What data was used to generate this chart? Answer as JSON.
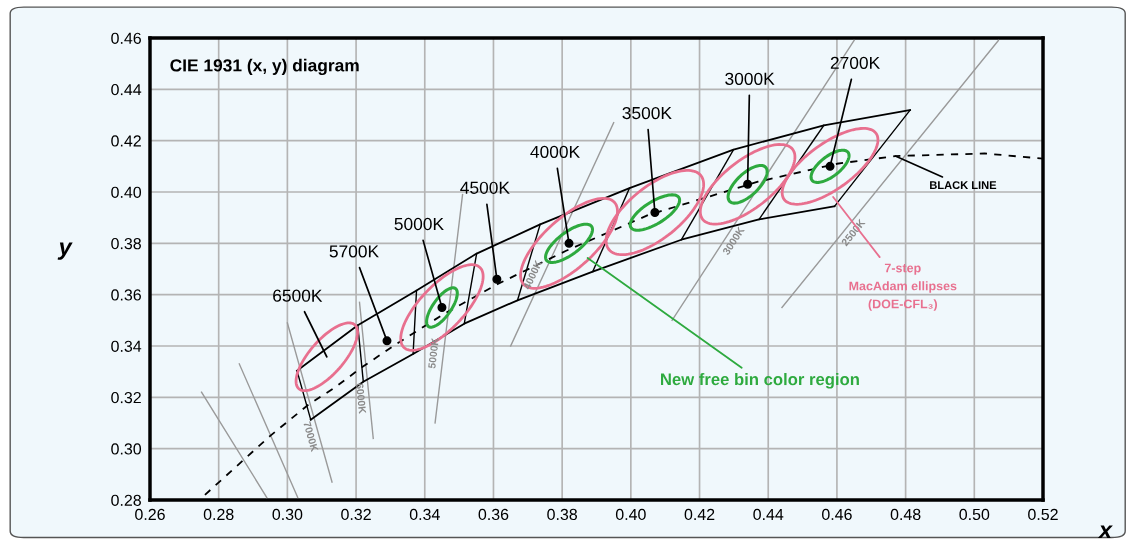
{
  "chart_data": {
    "type": "line",
    "title": "CIE 1931 (x, y) diagram",
    "xlabel": "x",
    "ylabel": "y",
    "xlim": [
      0.26,
      0.52
    ],
    "ylim": [
      0.28,
      0.46
    ],
    "xticks": [
      0.26,
      0.28,
      {
        "value": 0.3,
        "label": "0.30"
      },
      0.32,
      0.34,
      0.36,
      0.38,
      {
        "value": 0.4,
        "label": "0.40"
      },
      0.42,
      0.44,
      0.46,
      0.48,
      {
        "value": 0.5,
        "label": "0.50"
      },
      0.52
    ],
    "yticks": [
      0.28,
      {
        "value": 0.3,
        "label": "0.30"
      },
      0.32,
      0.34,
      0.36,
      0.38,
      {
        "value": 0.4,
        "label": "0.40"
      },
      0.42,
      0.44,
      0.46
    ],
    "grid": true,
    "series": [
      {
        "type": "line",
        "color": "#9a9a9a",
        "x": [
          0.275,
          0.294
        ],
        "values": [
          0.322,
          0.281
        ]
      },
      {
        "type": "line",
        "color": "#9a9a9a",
        "x": [
          0.286,
          0.303
        ],
        "values": [
          0.333,
          0.281
        ]
      },
      {
        "name": "7000K",
        "type": "line",
        "color": "#9a9a9a",
        "x": [
          0.3,
          0.313
        ],
        "values": [
          0.349,
          0.287
        ]
      },
      {
        "name": "6000K",
        "type": "line",
        "color": "#9a9a9a",
        "x": [
          0.321,
          0.325
        ],
        "values": [
          0.357,
          0.304
        ]
      },
      {
        "name": "5000K",
        "type": "line",
        "color": "#9a9a9a",
        "x": [
          0.351,
          0.343
        ],
        "values": [
          0.399,
          0.31
        ]
      },
      {
        "name": "4000K",
        "type": "line",
        "color": "#9a9a9a",
        "x": [
          0.395,
          0.365
        ],
        "values": [
          0.427,
          0.34
        ]
      },
      {
        "name": "3000K",
        "type": "line",
        "color": "#9a9a9a",
        "x": [
          0.412,
          0.465
        ],
        "values": [
          0.35,
          0.459
        ]
      },
      {
        "name": "2500K",
        "type": "line",
        "color": "#9a9a9a",
        "x": [
          0.444,
          0.507
        ],
        "values": [
          0.355,
          0.459
        ]
      },
      {
        "name": "BLACK LINE",
        "type": "line",
        "line_style": "dashed",
        "color": "#000000",
        "x": [
          0.276,
          0.295,
          0.306,
          0.314,
          0.322,
          0.332,
          0.345,
          0.361,
          0.381,
          0.405,
          0.437,
          0.46,
          0.477,
          0.503,
          0.52
        ],
        "values": [
          0.282,
          0.305,
          0.317,
          0.324,
          0.332,
          0.341,
          0.352,
          0.364,
          0.377,
          0.391,
          0.404,
          0.411,
          0.414,
          0.415,
          0.413
        ]
      },
      {
        "type": "line",
        "color": "#000000",
        "x": [
          0.3028,
          0.3205,
          0.3376,
          0.3551,
          0.3736,
          0.3996,
          0.4299,
          0.4562,
          0.4813
        ],
        "values": [
          0.3304,
          0.3481,
          0.3616,
          0.376,
          0.3874,
          0.4015,
          0.4165,
          0.426,
          0.4319
        ]
      },
      {
        "type": "line",
        "color": "#000000",
        "x": [
          0.3028,
          0.3068
        ],
        "values": [
          0.3304,
          0.3113
        ]
      },
      {
        "type": "line",
        "color": "#000000",
        "x": [
          0.3068,
          0.3221,
          0.3366,
          0.3515,
          0.367,
          0.3889,
          0.4147,
          0.4373,
          0.4593
        ],
        "values": [
          0.3113,
          0.3261,
          0.3369,
          0.3487,
          0.3578,
          0.369,
          0.3814,
          0.3893,
          0.3944
        ]
      },
      {
        "type": "line",
        "color": "#000000",
        "x": [
          0.3205,
          0.3221
        ],
        "values": [
          0.3481,
          0.3261
        ]
      },
      {
        "type": "line",
        "color": "#000000",
        "x": [
          0.3376,
          0.3366
        ],
        "values": [
          0.3616,
          0.3369
        ]
      },
      {
        "type": "line",
        "color": "#000000",
        "x": [
          0.3551,
          0.3515
        ],
        "values": [
          0.376,
          0.3487
        ]
      },
      {
        "type": "line",
        "color": "#000000",
        "x": [
          0.3736,
          0.367
        ],
        "values": [
          0.3874,
          0.3578
        ]
      },
      {
        "type": "line",
        "color": "#000000",
        "x": [
          0.3996,
          0.3889
        ],
        "values": [
          0.4015,
          0.369
        ]
      },
      {
        "type": "line",
        "color": "#000000",
        "x": [
          0.4299,
          0.4147
        ],
        "values": [
          0.4165,
          0.3814
        ]
      },
      {
        "type": "line",
        "color": "#000000",
        "x": [
          0.4562,
          0.4373
        ],
        "values": [
          0.426,
          0.3893
        ]
      },
      {
        "type": "line",
        "color": "#000000",
        "x": [
          0.4813,
          0.4593
        ],
        "values": [
          0.4319,
          0.3944
        ]
      },
      {
        "type": "scatter",
        "marker": "circle",
        "color": "#000000",
        "x": [
          0.329,
          0.345,
          0.361,
          0.382,
          0.407,
          0.434,
          0.458
        ],
        "values": [
          0.342,
          0.355,
          0.366,
          0.38,
          0.392,
          0.403,
          0.41
        ]
      }
    ],
    "annotations": [
      "6500K",
      {
        "text": "5700K",
        "x": 0.329,
        "y": 0.342
      },
      {
        "text": "5000K",
        "x": 0.345,
        "y": 0.355
      },
      {
        "text": "4500K",
        "x": 0.361,
        "y": 0.366
      },
      {
        "text": "4000K",
        "x": 0.382,
        "y": 0.38
      },
      {
        "text": "3500K",
        "x": 0.407,
        "y": 0.392
      },
      {
        "text": "3000K",
        "x": 0.434,
        "y": 0.403
      },
      {
        "text": "2700K",
        "x": 0.458,
        "y": 0.41
      },
      "7-step\nMacAdam ellipses\n(DOE-CFL₃)",
      "New free bin color region"
    ]
  }
}
